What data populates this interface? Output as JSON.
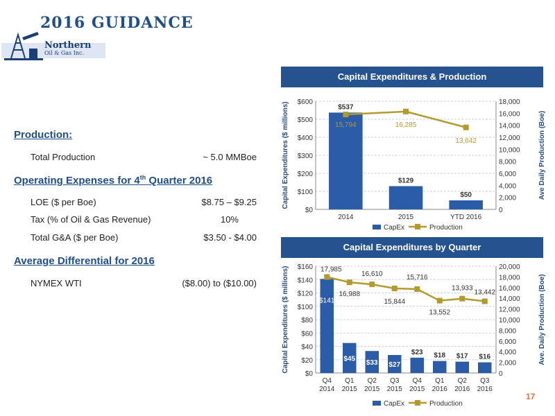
{
  "title": "2016 GUIDANCE",
  "logo": {
    "line1": "Northern",
    "line2": "Oil & Gas Inc."
  },
  "guidance": {
    "production_heading": "Production:",
    "total_production_label": "Total Production",
    "total_production_value": "~ 5.0 MMBoe",
    "opex_heading_pre": "Operating Expenses for 4",
    "opex_heading_sup": "th",
    "opex_heading_post": " Quarter 2016",
    "loe_label": "LOE ($ per Boe)",
    "loe_value": "$8.75 – $9.25",
    "tax_label": "Tax (% of Oil & Gas Revenue)",
    "tax_value": "10%",
    "ga_label": "Total G&A ($ per Boe)",
    "ga_value": "$3.50 - $4.00",
    "diff_heading": "Average Differential for 2016",
    "nymex_label": "NYMEX WTI",
    "nymex_value": "($8.00) to ($10.00)"
  },
  "page_number": "17",
  "colors": {
    "bar": "#2a5ca8",
    "line": "#b39a2c",
    "header": "#24538f"
  },
  "chart_data": [
    {
      "type": "bar",
      "title": "Capital Expenditures & Production",
      "categories": [
        "2014",
        "2015",
        "YTD 2016"
      ],
      "series": [
        {
          "name": "CapEx",
          "type": "bar",
          "axis": "left",
          "values": [
            537,
            129,
            50
          ],
          "labels": [
            "$537",
            "$129",
            "$50"
          ]
        },
        {
          "name": "Production",
          "type": "line",
          "axis": "right",
          "values": [
            15794,
            16285,
            13642
          ],
          "labels": [
            "15,794",
            "16,285",
            "13,642"
          ]
        }
      ],
      "ylabel": "Capital Expenditures ($ millions)",
      "y2label": "Ave Daily Production (Boe)",
      "ylim": [
        0,
        600
      ],
      "y2lim": [
        0,
        18000
      ],
      "yticks": [
        "$0",
        "$100",
        "$200",
        "$300",
        "$400",
        "$500",
        "$600"
      ],
      "y2ticks": [
        "0",
        "2,000",
        "4,000",
        "6,000",
        "8,000",
        "10,000",
        "12,000",
        "14,000",
        "16,000",
        "18,000"
      ],
      "legend": "bottom",
      "grid": true
    },
    {
      "type": "bar",
      "title": "Capital Expenditures by Quarter",
      "categories": [
        [
          "Q4",
          "2014"
        ],
        [
          "Q1",
          "2015"
        ],
        [
          "Q2",
          "2015"
        ],
        [
          "Q3",
          "2015"
        ],
        [
          "Q4",
          "2015"
        ],
        [
          "Q1",
          "2016"
        ],
        [
          "Q2",
          "2016"
        ],
        [
          "Q3",
          "2016"
        ]
      ],
      "series": [
        {
          "name": "CapEx",
          "type": "bar",
          "axis": "left",
          "values": [
            141,
            45,
            33,
            27,
            23,
            18,
            17,
            16
          ],
          "labels": [
            "$141",
            "$45",
            "$33",
            "$27",
            "$23",
            "$18",
            "$17",
            "$16"
          ]
        },
        {
          "name": "Production",
          "type": "line",
          "axis": "right",
          "values": [
            17985,
            16988,
            16610,
            15844,
            15716,
            13552,
            13933,
            13442
          ],
          "labels": [
            "17,985",
            "16,988",
            "16,610",
            "15,844",
            "15,716",
            "13,552",
            "13,933",
            "13,442"
          ]
        }
      ],
      "ylabel": "Capital Expenditures ($ millions)",
      "y2label": "Ave. Daily Production (Boe)",
      "ylim": [
        0,
        160
      ],
      "y2lim": [
        0,
        20000
      ],
      "yticks": [
        "$0",
        "$20",
        "$40",
        "$60",
        "$80",
        "$100",
        "$120",
        "$140",
        "$160"
      ],
      "y2ticks": [
        "0",
        "2,000",
        "4,000",
        "6,000",
        "8,000",
        "10,000",
        "12,000",
        "14,000",
        "16,000",
        "18,000",
        "20,000"
      ],
      "legend": "bottom",
      "grid": true
    }
  ]
}
